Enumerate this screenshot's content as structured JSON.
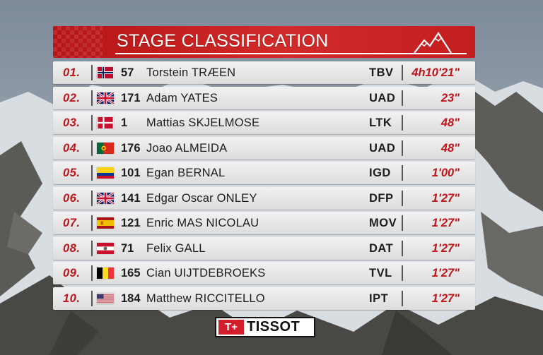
{
  "header": {
    "title": "STAGE CLASSIFICATION"
  },
  "colors": {
    "header_red": "#c41e1e",
    "accent_red": "#c0141b",
    "row_bg": "#e6e6e6"
  },
  "rows": [
    {
      "pos": "01.",
      "flag": "norway-flag",
      "num": "57",
      "name": "Torstein TRÆEN",
      "team": "TBV",
      "time": "4h10'21\""
    },
    {
      "pos": "02.",
      "flag": "uk-flag",
      "num": "171",
      "name": "Adam YATES",
      "team": "UAD",
      "time": "23\""
    },
    {
      "pos": "03.",
      "flag": "denmark-flag",
      "num": "1",
      "name": "Mattias SKJELMOSE",
      "team": "LTK",
      "time": "48\""
    },
    {
      "pos": "04.",
      "flag": "portugal-flag",
      "num": "176",
      "name": "Joao ALMEIDA",
      "team": "UAD",
      "time": "48\""
    },
    {
      "pos": "05.",
      "flag": "colombia-flag",
      "num": "101",
      "name": "Egan BERNAL",
      "team": "IGD",
      "time": "1'00\""
    },
    {
      "pos": "06.",
      "flag": "uk-flag",
      "num": "141",
      "name": "Edgar Oscar ONLEY",
      "team": "DFP",
      "time": "1'27\""
    },
    {
      "pos": "07.",
      "flag": "spain-flag",
      "num": "121",
      "name": "Enric MAS NICOLAU",
      "team": "MOV",
      "time": "1'27\""
    },
    {
      "pos": "08.",
      "flag": "austria-flag",
      "num": "71",
      "name": "Felix GALL",
      "team": "DAT",
      "time": "1'27\""
    },
    {
      "pos": "09.",
      "flag": "belgium-flag",
      "num": "165",
      "name": "Cian UIJTDEBROEKS",
      "team": "TVL",
      "time": "1'27\""
    },
    {
      "pos": "10.",
      "flag": "usa-flag",
      "num": "184",
      "name": "Matthew RICCITELLO",
      "team": "IPT",
      "time": "1'27\""
    }
  ],
  "sponsor": {
    "mark": "T+",
    "name": "TISSOT"
  }
}
